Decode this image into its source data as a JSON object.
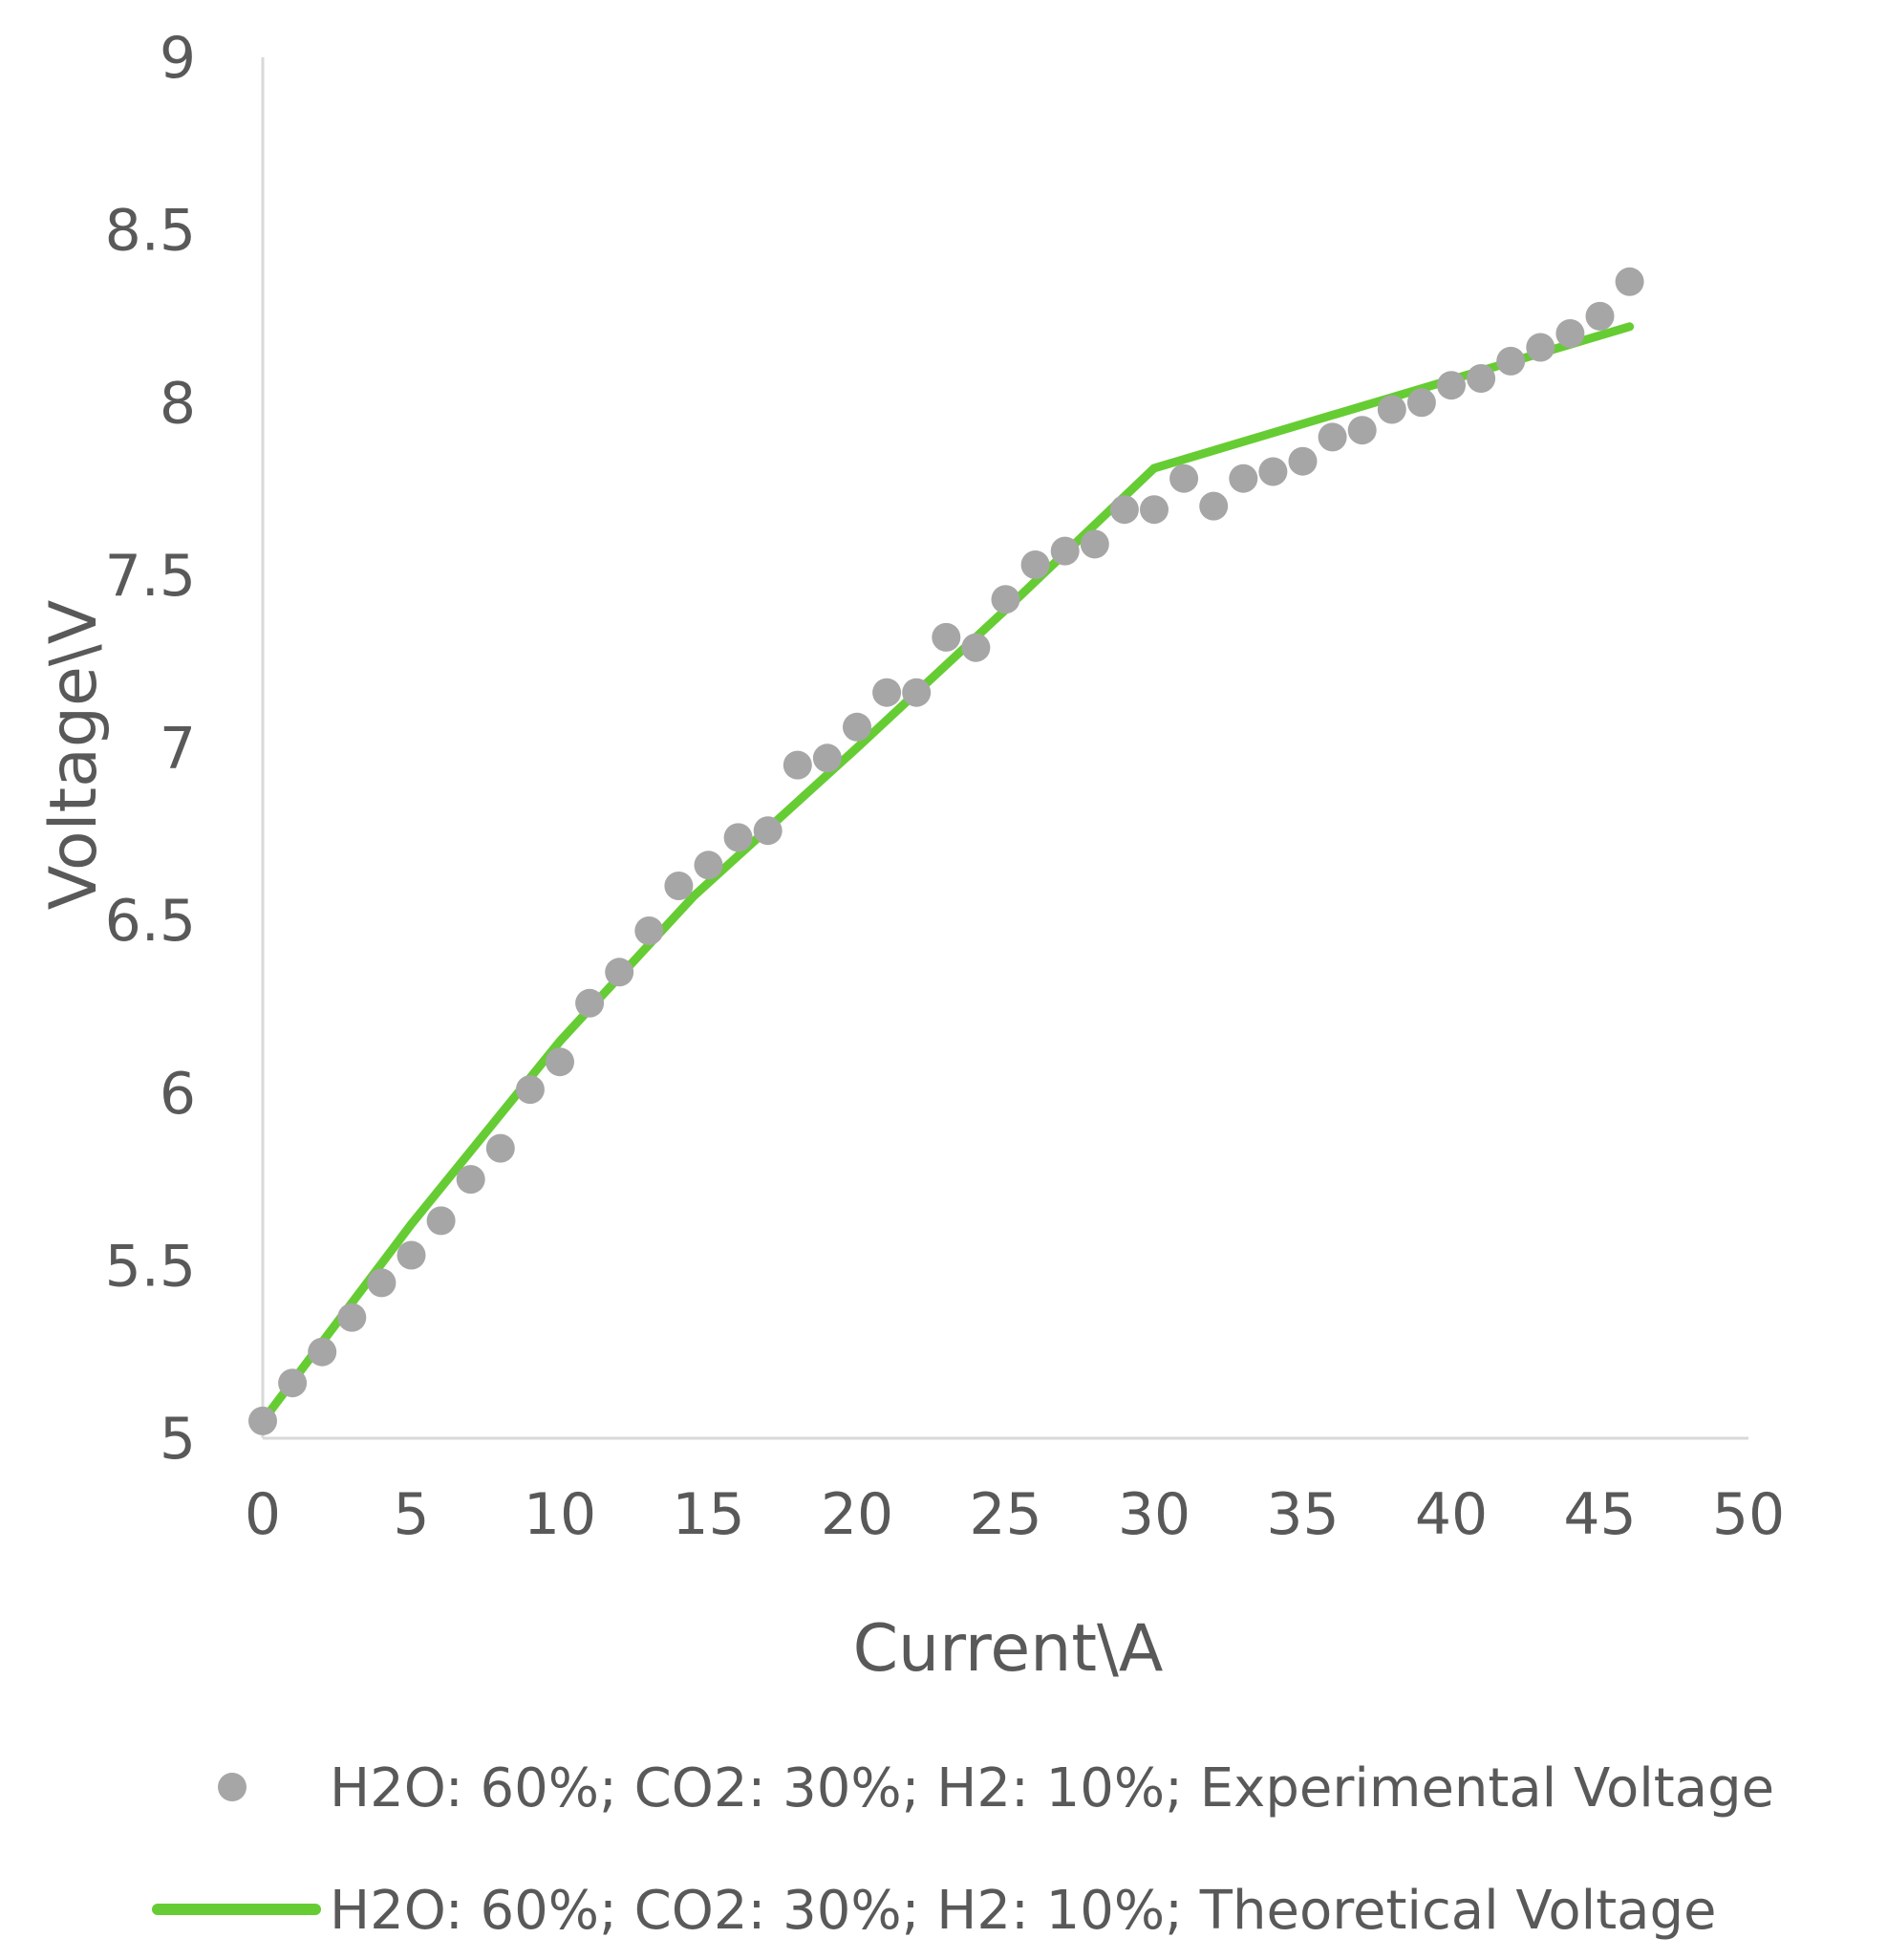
{
  "chart_data": {
    "type": "scatter",
    "title": "",
    "xlabel": "Current\\A",
    "ylabel": "Voltage\\V",
    "xlim": [
      0,
      50
    ],
    "ylim": [
      5,
      9
    ],
    "x_ticks": [
      0,
      5,
      10,
      15,
      20,
      25,
      30,
      35,
      40,
      45,
      50
    ],
    "y_ticks": [
      5,
      5.5,
      6,
      6.5,
      7,
      7.5,
      8,
      8.5,
      9
    ],
    "x_tick_labels": [
      "0",
      "5",
      "10",
      "15",
      "20",
      "25",
      "30",
      "35",
      "40",
      "45",
      "50"
    ],
    "y_tick_labels": [
      "5",
      "5.5",
      "6",
      "6.5",
      "7",
      "7.5",
      "8",
      "8.5",
      "9"
    ],
    "grid": false,
    "legend_position": "bottom",
    "series": [
      {
        "name": "H2O: 60%; CO2: 30%; H2: 10%; Experimental Voltage",
        "kind": "scatter",
        "color": "#a6a6a6",
        "x": [
          0,
          1,
          2,
          3,
          4,
          5,
          6,
          7,
          8,
          9,
          10,
          11,
          12,
          13,
          14,
          15,
          16,
          17,
          18,
          19,
          20,
          21,
          22,
          23,
          24,
          25,
          26,
          27,
          28,
          29,
          30,
          31,
          32,
          33,
          34,
          35,
          36,
          37,
          38,
          39,
          40,
          41,
          42,
          43,
          44,
          45,
          46
        ],
        "y": [
          5.05,
          5.16,
          5.25,
          5.35,
          5.45,
          5.53,
          5.63,
          5.75,
          5.84,
          6.01,
          6.09,
          6.26,
          6.35,
          6.47,
          6.6,
          6.66,
          6.74,
          6.76,
          6.95,
          6.97,
          7.06,
          7.16,
          7.16,
          7.32,
          7.29,
          7.43,
          7.53,
          7.57,
          7.59,
          7.69,
          7.69,
          7.78,
          7.7,
          7.78,
          7.8,
          7.83,
          7.9,
          7.92,
          7.98,
          8.0,
          8.05,
          8.07,
          8.12,
          8.16,
          8.2,
          8.25,
          8.35
        ]
      },
      {
        "name": "H2O: 60%; CO2: 30%; H2: 10%; Theoretical Voltage",
        "kind": "line",
        "color": "#66cc33",
        "x": [
          0,
          5,
          10,
          14.5,
          20,
          25,
          30,
          46
        ],
        "y": [
          5.05,
          5.62,
          6.15,
          6.57,
          7.0,
          7.4,
          7.81,
          8.22
        ]
      }
    ]
  }
}
